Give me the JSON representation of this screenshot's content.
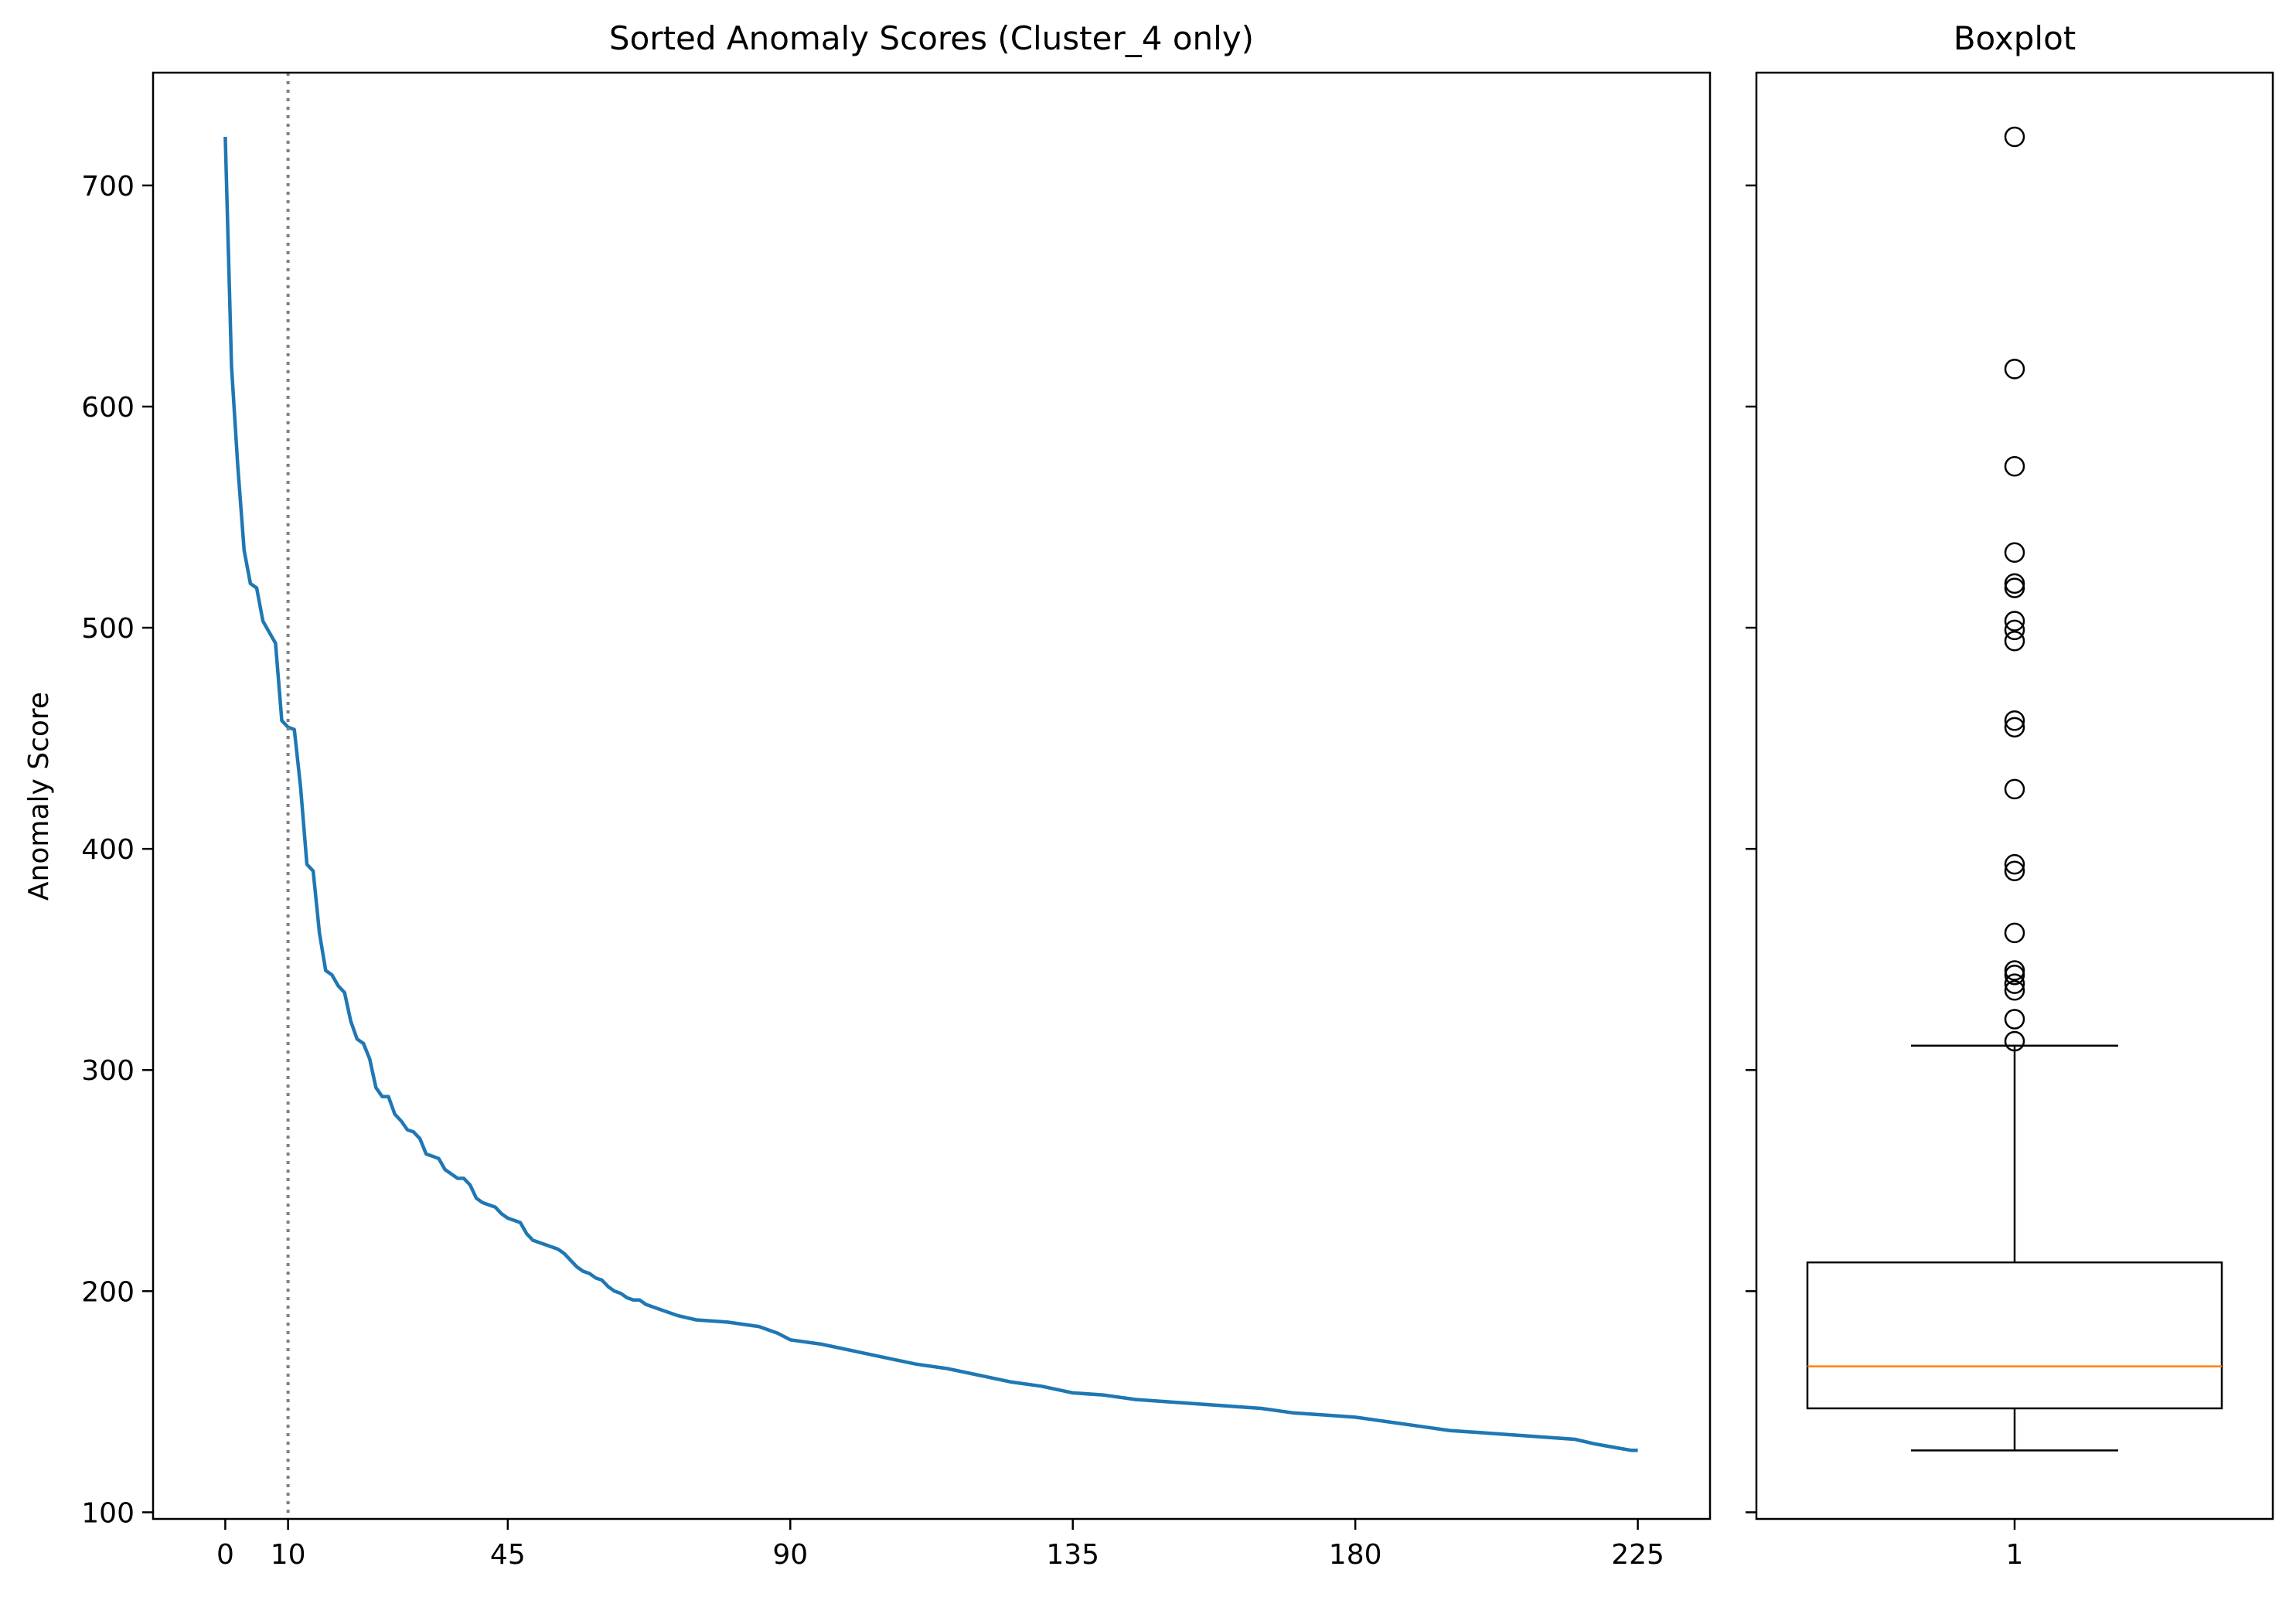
{
  "chart_data": [
    {
      "type": "line",
      "title": "Sorted Anomaly Scores (Cluster_4 only)",
      "xlabel": "",
      "ylabel": "Anomaly Score",
      "xlim": [
        -11.5,
        236.5
      ],
      "ylim": [
        97,
        751
      ],
      "x_ticks": [
        0,
        10,
        45,
        90,
        135,
        180,
        225
      ],
      "y_ticks": [
        100,
        200,
        300,
        400,
        500,
        600,
        700
      ],
      "grid": false,
      "colors": {
        "line": "#1f77b4",
        "marker_line": "#808080"
      },
      "vertical_line": {
        "x": 10,
        "style": "dotted"
      },
      "series": [
        {
          "x": [
            0,
            1,
            2,
            3,
            4,
            5,
            6,
            7,
            8,
            9,
            10,
            11,
            12,
            13,
            14,
            15,
            16,
            17,
            18,
            19,
            20,
            21,
            22,
            23,
            24,
            25,
            26,
            27,
            28,
            29,
            30,
            31,
            32,
            33,
            34,
            35,
            36,
            37,
            38,
            39,
            40,
            41,
            42,
            43,
            44,
            45,
            46,
            47,
            48,
            49,
            50,
            51,
            52,
            53,
            54,
            55,
            56,
            57,
            58,
            59,
            60,
            61,
            62,
            63,
            64,
            65,
            66,
            67,
            68,
            69,
            70,
            72,
            75,
            80,
            85,
            88,
            90,
            95,
            100,
            105,
            110,
            115,
            120,
            125,
            130,
            135,
            140,
            145,
            150,
            155,
            160,
            165,
            170,
            175,
            180,
            185,
            190,
            195,
            200,
            205,
            210,
            215,
            218,
            220,
            222,
            224,
            225
          ],
          "values": [
            722,
            618,
            573,
            535,
            520,
            518,
            503,
            498,
            493,
            458,
            455,
            454,
            428,
            393,
            390,
            362,
            345,
            343,
            338,
            335,
            322,
            314,
            312,
            305,
            292,
            288,
            288,
            280,
            277,
            273,
            272,
            269,
            262,
            261,
            260,
            255,
            253,
            251,
            251,
            248,
            242,
            240,
            239,
            238,
            235,
            233,
            232,
            231,
            226,
            223,
            222,
            221,
            220,
            219,
            217,
            214,
            211,
            209,
            208,
            206,
            205,
            202,
            200,
            199,
            197,
            196,
            196,
            194,
            193,
            192,
            191,
            189,
            187,
            186,
            184,
            181,
            178,
            176,
            173,
            170,
            167,
            165,
            162,
            159,
            157,
            154,
            153,
            151,
            150,
            149,
            148,
            147,
            145,
            144,
            143,
            141,
            139,
            137,
            136,
            135,
            134,
            133,
            131,
            130,
            129,
            128,
            128
          ]
        }
      ]
    },
    {
      "type": "box",
      "title": "Boxplot",
      "categories": [
        "1"
      ],
      "ylim": [
        97,
        751
      ],
      "stats": {
        "whisker_low": 128,
        "q1": 147,
        "median": 166,
        "q3": 213,
        "whisker_high": 311,
        "outliers": [
          722,
          617,
          573,
          534,
          520,
          518,
          503,
          499,
          494,
          458,
          455,
          427,
          393,
          390,
          362,
          345,
          343,
          339,
          336,
          323,
          313
        ]
      },
      "colors": {
        "median": "#ff7f0e",
        "box": "#000000"
      }
    }
  ]
}
